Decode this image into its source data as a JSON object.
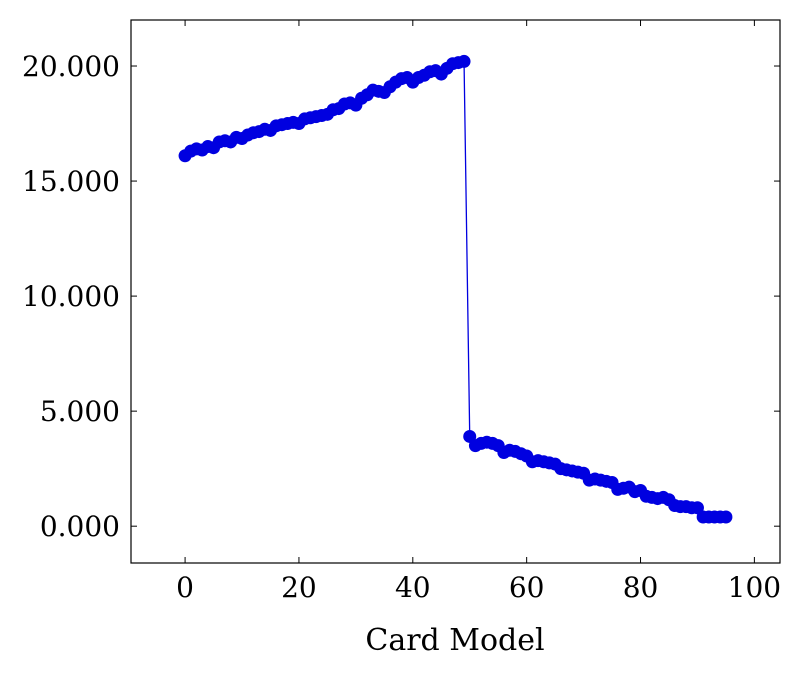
{
  "chart_data": {
    "type": "line",
    "title": "",
    "xlabel": "Card Model",
    "ylabel": "",
    "xlim": [
      -9.5,
      104.5
    ],
    "ylim": [
      -1.6,
      22.0
    ],
    "xticks": [
      0,
      20,
      40,
      60,
      80,
      100
    ],
    "xtick_labels": [
      "0",
      "20",
      "40",
      "60",
      "80",
      "100"
    ],
    "yticks": [
      0,
      5,
      10,
      15,
      20
    ],
    "ytick_labels": [
      "0.000",
      "5.000",
      "10.000",
      "15.000",
      "20.000"
    ],
    "grid": false,
    "legend": "none",
    "colors": {
      "series": "#0000e0",
      "axis": "#000000",
      "background": "#ffffff"
    },
    "series": [
      {
        "marker": "circle",
        "x": [
          0,
          1,
          2,
          3,
          4,
          5,
          6,
          7,
          8,
          9,
          10,
          11,
          12,
          13,
          14,
          15,
          16,
          17,
          18,
          19,
          20,
          21,
          22,
          23,
          24,
          25,
          26,
          27,
          28,
          29,
          30,
          31,
          32,
          33,
          34,
          35,
          36,
          37,
          38,
          39,
          40,
          41,
          42,
          43,
          44,
          45,
          46,
          47,
          48,
          49,
          50,
          51,
          52,
          53,
          54,
          55,
          56,
          57,
          58,
          59,
          60,
          61,
          62,
          63,
          64,
          65,
          66,
          67,
          68,
          69,
          70,
          71,
          72,
          73,
          74,
          75,
          76,
          77,
          78,
          79,
          80,
          81,
          82,
          83,
          84,
          85,
          86,
          87,
          88,
          89,
          90,
          91,
          92,
          93,
          94,
          95
        ],
        "y": [
          16.1,
          16.3,
          16.4,
          16.35,
          16.5,
          16.45,
          16.7,
          16.75,
          16.7,
          16.9,
          16.85,
          17.0,
          17.1,
          17.15,
          17.25,
          17.2,
          17.4,
          17.45,
          17.5,
          17.55,
          17.5,
          17.7,
          17.75,
          17.8,
          17.85,
          17.9,
          18.1,
          18.15,
          18.35,
          18.4,
          18.3,
          18.6,
          18.75,
          18.95,
          18.9,
          18.85,
          19.1,
          19.3,
          19.45,
          19.5,
          19.3,
          19.5,
          19.6,
          19.75,
          19.8,
          19.65,
          19.9,
          20.1,
          20.15,
          20.2,
          3.9,
          3.5,
          3.6,
          3.65,
          3.6,
          3.5,
          3.2,
          3.3,
          3.25,
          3.15,
          3.05,
          2.8,
          2.85,
          2.8,
          2.75,
          2.7,
          2.5,
          2.45,
          2.4,
          2.35,
          2.3,
          2.0,
          2.05,
          2.0,
          1.95,
          1.9,
          1.6,
          1.65,
          1.7,
          1.5,
          1.55,
          1.3,
          1.25,
          1.2,
          1.25,
          1.15,
          0.9,
          0.85,
          0.85,
          0.8,
          0.8,
          0.4,
          0.4,
          0.4,
          0.4,
          0.4
        ]
      }
    ]
  }
}
